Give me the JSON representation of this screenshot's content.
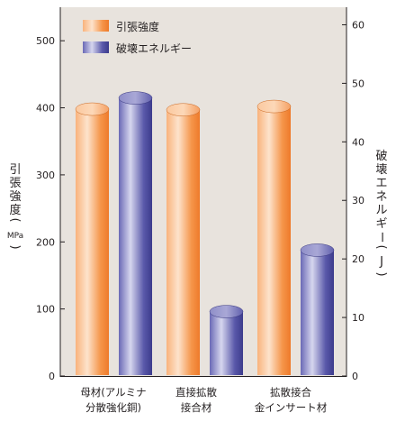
{
  "chart_data": {
    "type": "bar",
    "categories": [
      [
        "母材(アルミナ",
        "分散強化銅)"
      ],
      [
        "直接拡散",
        "接合材"
      ],
      [
        "拡散接合",
        "金インサート材"
      ]
    ],
    "series": [
      {
        "name": "引張強度",
        "axis": "left",
        "color": "#f4893c",
        "values": [
          398,
          397,
          402
        ]
      },
      {
        "name": "破壊エネルギー",
        "axis": "right",
        "color": "#4c4aa0",
        "values": [
          47.5,
          11,
          21.5
        ]
      }
    ],
    "y_left": {
      "label": "引張強度",
      "unit": "MPa",
      "ylim": [
        0,
        550
      ],
      "ticks": [
        0,
        100,
        200,
        300,
        400,
        500
      ]
    },
    "y_right": {
      "label": "破壊エネルギー",
      "unit": "J",
      "ylim": [
        0,
        63
      ],
      "ticks": [
        0,
        10,
        20,
        30,
        40,
        50,
        60
      ]
    },
    "legend": "top-left",
    "grid": false,
    "plot_background": "#e8e3dd"
  }
}
